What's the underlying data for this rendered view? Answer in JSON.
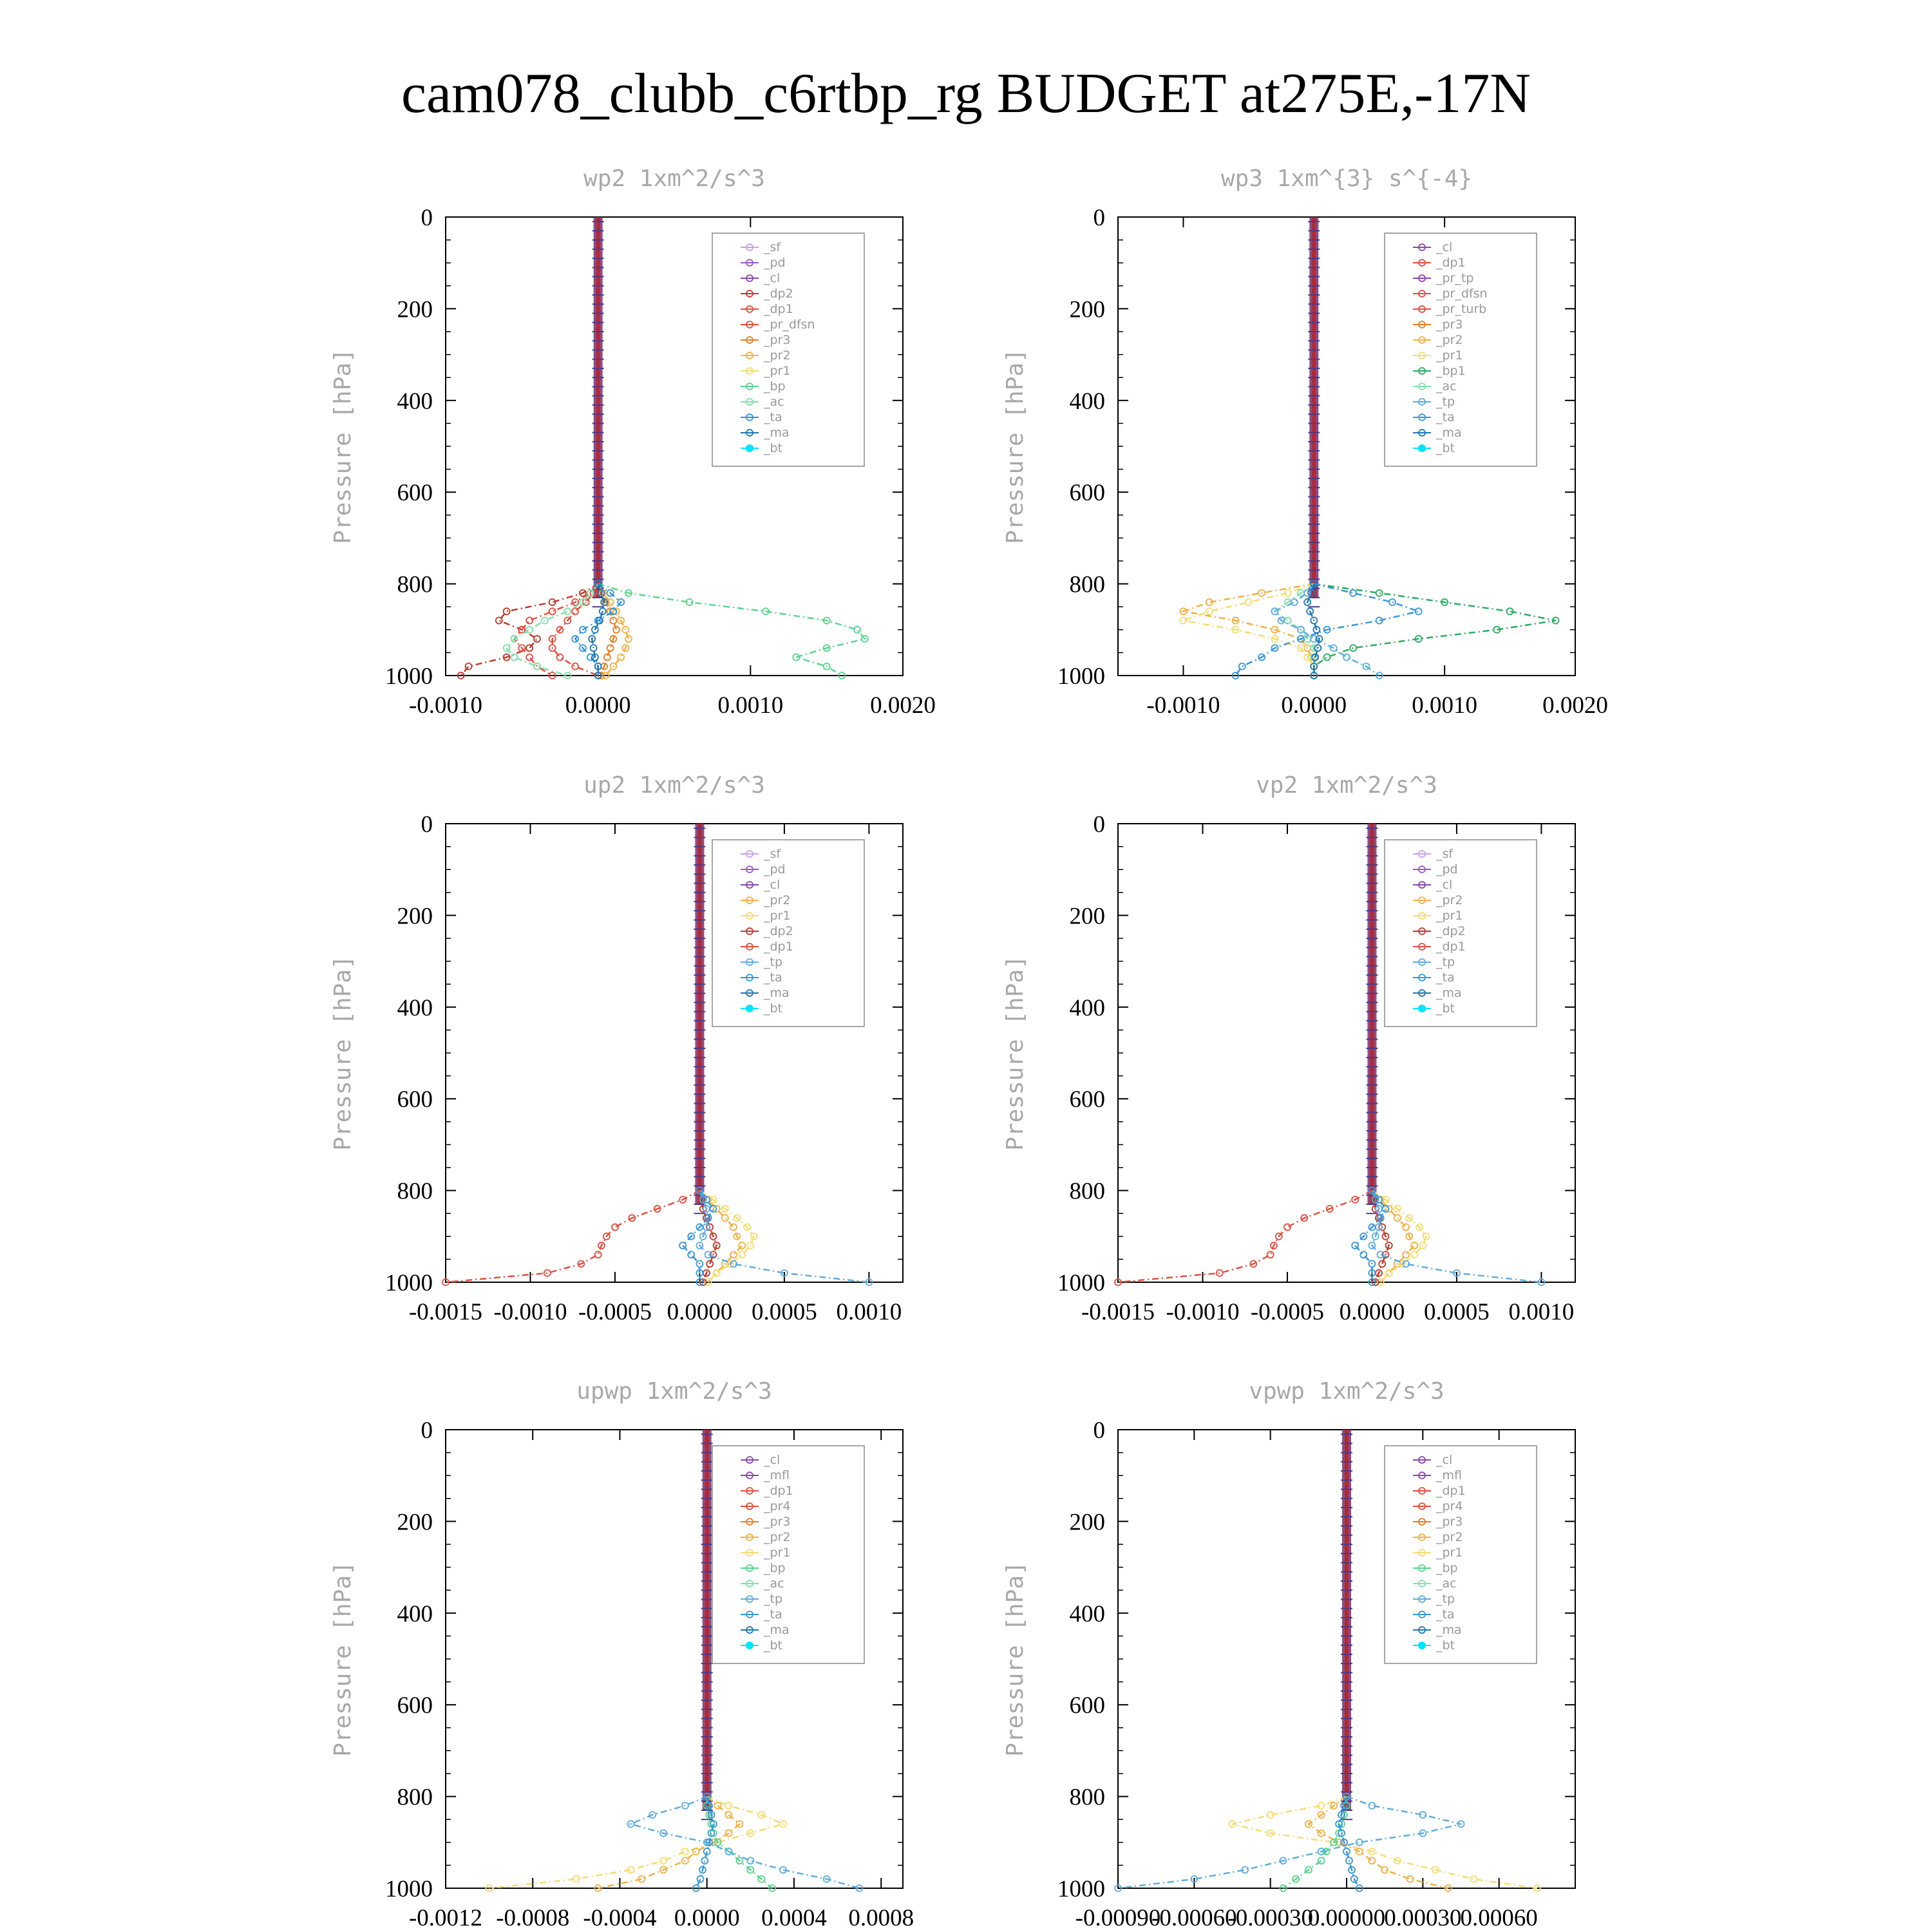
{
  "title": "cam078_clubb_c6rtbp_rg  BUDGET at275E,-17N",
  "colors": {
    "sf": "#c8a0e8",
    "pd": "#9b59d0",
    "cl": "#8e44ad",
    "mfl": "#8e44ad",
    "dp2": "#c0392b",
    "dp1": "#e74c3c",
    "pr_dfsn": "#e74c3c",
    "pr_tp": "#8e44ad",
    "pr_turb": "#e74c3c",
    "pr4": "#e74c3c",
    "pr3": "#e67e22",
    "pr2": "#f5b041",
    "pr1": "#f7dc6f",
    "bp": "#58d68d",
    "bp1": "#27ae60",
    "ac": "#82e0aa",
    "tp": "#5dade2",
    "ta": "#3498db",
    "ma": "#1f78b4",
    "bt": "#00e5ff"
  },
  "chart_data": [
    {
      "type": "line",
      "title": "wp2   1xm^2/s^3",
      "ylabel": "Pressure [hPa]",
      "xlim": [
        -0.001,
        0.002
      ],
      "ylim": [
        1000,
        0
      ],
      "xticks": [
        "-0.0010",
        "0.0000",
        "0.0010",
        "0.0020"
      ],
      "yticks": [
        "0",
        "200",
        "400",
        "600",
        "800",
        "1000"
      ],
      "legend": [
        "_sf",
        "_pd",
        "_cl",
        "_dp2",
        "_dp1",
        "_pr_dfsn",
        "_pr3",
        "_pr2",
        "_pr1",
        "_bp",
        "_ac",
        "_ta",
        "_ma",
        "_bt"
      ],
      "legend_position": "upper-right",
      "y": [
        800,
        820,
        840,
        860,
        880,
        900,
        920,
        940,
        960,
        980,
        1000
      ],
      "series": [
        {
          "name": "_dp2",
          "color_key": "dp2",
          "values": [
            0,
            -0.0001,
            -0.0003,
            -0.0006,
            -0.00065,
            -0.0005,
            -0.0004,
            -0.00045,
            -0.0006,
            -0.00085,
            -0.0009
          ]
        },
        {
          "name": "_dp1",
          "color_key": "dp1",
          "values": [
            0,
            -5e-05,
            -0.00015,
            -0.0003,
            -0.00045,
            -0.0005,
            -0.00055,
            -0.0005,
            -0.00045,
            -0.0004,
            -0.0003
          ]
        },
        {
          "name": "_pr_dfsn",
          "color_key": "pr_dfsn",
          "values": [
            0,
            -3e-05,
            -8e-05,
            -0.00015,
            -0.0002,
            -0.00025,
            -0.0003,
            -0.0003,
            -0.00025,
            -0.00015,
            0
          ]
        },
        {
          "name": "_pr3",
          "color_key": "pr3",
          "values": [
            0,
            2e-05,
            5e-05,
            8e-05,
            0.0001,
            0.00012,
            0.0001,
            8e-05,
            6e-05,
            4e-05,
            2e-05
          ]
        },
        {
          "name": "_pr2",
          "color_key": "pr2",
          "values": [
            0,
            3e-05,
            8e-05,
            0.00012,
            0.00015,
            0.00018,
            0.0002,
            0.00018,
            0.00015,
            0.0001,
            5e-05
          ]
        },
        {
          "name": "_bp",
          "color_key": "bp",
          "values": [
            0,
            0.0002,
            0.0006,
            0.0011,
            0.0015,
            0.0017,
            0.00175,
            0.0015,
            0.0013,
            0.0015,
            0.0016
          ]
        },
        {
          "name": "_ac",
          "color_key": "ac",
          "values": [
            0,
            -5e-05,
            -0.0001,
            -0.0002,
            -0.00035,
            -0.00045,
            -0.00055,
            -0.0006,
            -0.00055,
            -0.0004,
            -0.0002
          ]
        },
        {
          "name": "_ta",
          "color_key": "ta",
          "values": [
            0,
            8e-05,
            0.00015,
            0.0001,
            0,
            -0.0001,
            -0.00015,
            -0.0001,
            -5e-05,
            0,
            0
          ]
        },
        {
          "name": "_ma",
          "color_key": "ma",
          "values": [
            0,
            2e-05,
            4e-05,
            3e-05,
            1e-05,
            -2e-05,
            -4e-05,
            -3e-05,
            -2e-05,
            0,
            0
          ]
        }
      ]
    },
    {
      "type": "line",
      "title": "wp3   1xm^{3} s^{-4}",
      "ylabel": "Pressure [hPa]",
      "xlim": [
        -0.0015,
        0.002
      ],
      "ylim": [
        1000,
        0
      ],
      "xticks": [
        "-0.0010",
        "0.0000",
        "0.0010",
        "0.0020"
      ],
      "yticks": [
        "0",
        "200",
        "400",
        "600",
        "800",
        "1000"
      ],
      "legend": [
        "_cl",
        "_dp1",
        "_pr_tp",
        "_pr_dfsn",
        "_pr_turb",
        "_pr3",
        "_pr2",
        "_pr1",
        "_bp1",
        "_ac",
        "_tp",
        "_ta",
        "_ma",
        "_bt"
      ],
      "legend_position": "upper-right",
      "y": [
        800,
        820,
        840,
        860,
        880,
        900,
        920,
        940,
        960,
        980,
        1000
      ],
      "series": [
        {
          "name": "_pr2",
          "color_key": "pr2",
          "values": [
            0,
            -0.0004,
            -0.0008,
            -0.001,
            -0.0006,
            -0.0003,
            -0.0001,
            -5e-05,
            -2e-05,
            0,
            0
          ]
        },
        {
          "name": "_pr1",
          "color_key": "pr1",
          "values": [
            0,
            -0.0002,
            -0.0005,
            -0.0008,
            -0.001,
            -0.0006,
            -0.0003,
            -0.0001,
            -5e-05,
            0,
            0
          ]
        },
        {
          "name": "_bp1",
          "color_key": "bp1",
          "values": [
            0,
            0.0005,
            0.001,
            0.0015,
            0.00185,
            0.0014,
            0.0008,
            0.0003,
            0.0001,
            0,
            0
          ]
        },
        {
          "name": "_ac",
          "color_key": "ac",
          "values": [
            0,
            -0.0001,
            -0.0002,
            -0.0003,
            -0.0002,
            -0.0001,
            -5e-05,
            0,
            0,
            0,
            0
          ]
        },
        {
          "name": "_tp",
          "color_key": "tp",
          "values": [
            0,
            -5e-05,
            -0.00015,
            -0.0003,
            -0.00025,
            -0.0001,
            0,
            0.00015,
            0.00025,
            0.0004,
            0.0005
          ]
        },
        {
          "name": "_ta",
          "color_key": "ta",
          "values": [
            0,
            0.0003,
            0.0006,
            0.0008,
            0.0005,
            0.0001,
            -0.0001,
            -0.0003,
            -0.0004,
            -0.00055,
            -0.0006
          ]
        },
        {
          "name": "_ma",
          "color_key": "ma",
          "values": [
            0,
            -2e-05,
            -5e-05,
            -3e-05,
            0,
            2e-05,
            4e-05,
            3e-05,
            1e-05,
            0,
            0
          ]
        }
      ]
    },
    {
      "type": "line",
      "title": "up2   1xm^2/s^3",
      "ylabel": "Pressure [hPa]",
      "xlim": [
        -0.0015,
        0.0012
      ],
      "ylim": [
        1000,
        0
      ],
      "xticks": [
        "-0.0015",
        "-0.0010",
        "-0.0005",
        "0.0000",
        "0.0005",
        "0.0010"
      ],
      "yticks": [
        "0",
        "200",
        "400",
        "600",
        "800",
        "1000"
      ],
      "legend": [
        "_sf",
        "_pd",
        "_cl",
        "_pr2",
        "_pr1",
        "_dp2",
        "_dp1",
        "_tp",
        "_ta",
        "_ma",
        "_bt"
      ],
      "legend_position": "upper-right",
      "y": [
        800,
        820,
        840,
        860,
        880,
        900,
        920,
        940,
        960,
        980,
        1000
      ],
      "series": [
        {
          "name": "_pr2",
          "color_key": "pr2",
          "values": [
            0,
            5e-05,
            0.0001,
            0.00015,
            0.0002,
            0.00022,
            0.00025,
            0.0002,
            0.00015,
            0.0001,
            5e-05
          ]
        },
        {
          "name": "_pr1",
          "color_key": "pr1",
          "values": [
            0,
            8e-05,
            0.00015,
            0.00022,
            0.00028,
            0.00032,
            0.0003,
            0.00025,
            0.00018,
            0.0001,
            5e-05
          ]
        },
        {
          "name": "_dp2",
          "color_key": "dp2",
          "values": [
            0,
            1e-05,
            2e-05,
            4e-05,
            6e-05,
            8e-05,
            0.0001,
            8e-05,
            6e-05,
            4e-05,
            2e-05
          ]
        },
        {
          "name": "_dp1",
          "color_key": "dp1",
          "values": [
            0,
            -0.0001,
            -0.00025,
            -0.0004,
            -0.0005,
            -0.00055,
            -0.00058,
            -0.0006,
            -0.0007,
            -0.0009,
            -0.0015
          ]
        },
        {
          "name": "_tp",
          "color_key": "tp",
          "values": [
            0,
            2e-05,
            4e-05,
            5e-05,
            4e-05,
            2e-05,
            0,
            5e-05,
            0.0002,
            0.0005,
            0.001
          ]
        },
        {
          "name": "_ta",
          "color_key": "ta",
          "values": [
            0,
            4e-05,
            8e-05,
            5e-05,
            0,
            -5e-05,
            -0.0001,
            -5e-05,
            0,
            0,
            0
          ]
        }
      ]
    },
    {
      "type": "line",
      "title": "vp2   1xm^2/s^3",
      "ylabel": "Pressure [hPa]",
      "xlim": [
        -0.0015,
        0.0012
      ],
      "ylim": [
        1000,
        0
      ],
      "xticks": [
        "-0.0015",
        "-0.0010",
        "-0.0005",
        "0.0000",
        "0.0005",
        "0.0010"
      ],
      "yticks": [
        "0",
        "200",
        "400",
        "600",
        "800",
        "1000"
      ],
      "legend": [
        "_sf",
        "_pd",
        "_cl",
        "_pr2",
        "_pr1",
        "_dp2",
        "_dp1",
        "_tp",
        "_ta",
        "_ma",
        "_bt"
      ],
      "legend_position": "upper-right",
      "y": [
        800,
        820,
        840,
        860,
        880,
        900,
        920,
        940,
        960,
        980,
        1000
      ],
      "series": [
        {
          "name": "_pr2",
          "color_key": "pr2",
          "values": [
            0,
            5e-05,
            0.0001,
            0.00015,
            0.0002,
            0.00022,
            0.00025,
            0.0002,
            0.00015,
            0.0001,
            5e-05
          ]
        },
        {
          "name": "_pr1",
          "color_key": "pr1",
          "values": [
            0,
            8e-05,
            0.00015,
            0.00022,
            0.00028,
            0.00032,
            0.0003,
            0.00025,
            0.00018,
            0.0001,
            5e-05
          ]
        },
        {
          "name": "_dp2",
          "color_key": "dp2",
          "values": [
            0,
            1e-05,
            2e-05,
            4e-05,
            6e-05,
            8e-05,
            0.0001,
            8e-05,
            6e-05,
            4e-05,
            2e-05
          ]
        },
        {
          "name": "_dp1",
          "color_key": "dp1",
          "values": [
            0,
            -0.0001,
            -0.00025,
            -0.0004,
            -0.0005,
            -0.00055,
            -0.00058,
            -0.0006,
            -0.0007,
            -0.0009,
            -0.0015
          ]
        },
        {
          "name": "_tp",
          "color_key": "tp",
          "values": [
            0,
            2e-05,
            4e-05,
            5e-05,
            4e-05,
            2e-05,
            0,
            5e-05,
            0.0002,
            0.0005,
            0.001
          ]
        },
        {
          "name": "_ta",
          "color_key": "ta",
          "values": [
            0,
            4e-05,
            8e-05,
            5e-05,
            0,
            -5e-05,
            -0.0001,
            -5e-05,
            0,
            0,
            0
          ]
        }
      ]
    },
    {
      "type": "line",
      "title": "upwp   1xm^2/s^3",
      "ylabel": "Pressure [hPa]",
      "xlim": [
        -0.0012,
        0.0009
      ],
      "ylim": [
        1000,
        0
      ],
      "xticks": [
        "-0.0012",
        "-0.0008",
        "-0.0004",
        "0.0000",
        "0.0004",
        "0.0008"
      ],
      "yticks": [
        "0",
        "200",
        "400",
        "600",
        "800",
        "1000"
      ],
      "legend": [
        "_cl",
        "_mfl",
        "_dp1",
        "_pr4",
        "_pr3",
        "_pr2",
        "_pr1",
        "_bp",
        "_ac",
        "_tp",
        "_ta",
        "_ma",
        "_bt"
      ],
      "legend_position": "upper-right",
      "y": [
        800,
        820,
        840,
        860,
        880,
        900,
        920,
        940,
        960,
        980,
        1000
      ],
      "series": [
        {
          "name": "_pr1",
          "color_key": "pr1",
          "values": [
            0,
            0.0001,
            0.00025,
            0.00035,
            0.0002,
            5e-05,
            -0.0001,
            -0.0002,
            -0.00035,
            -0.0006,
            -0.001
          ]
        },
        {
          "name": "_pr2",
          "color_key": "pr2",
          "values": [
            0,
            5e-05,
            0.0001,
            0.00015,
            0.0001,
            3e-05,
            -5e-05,
            -0.0001,
            -0.0002,
            -0.0003,
            -0.0005
          ]
        },
        {
          "name": "_bp",
          "color_key": "bp",
          "values": [
            0,
            0,
            1e-05,
            2e-05,
            3e-05,
            5e-05,
            0.0001,
            0.00015,
            0.0002,
            0.00025,
            0.0003
          ]
        },
        {
          "name": "_tp",
          "color_key": "tp",
          "values": [
            0,
            -0.0001,
            -0.00025,
            -0.00035,
            -0.0002,
            0,
            0.0001,
            0.0002,
            0.00035,
            0.00055,
            0.0007
          ]
        },
        {
          "name": "_ta",
          "color_key": "ta",
          "values": [
            0,
            1e-05,
            2e-05,
            3e-05,
            2e-05,
            1e-05,
            0,
            -1e-05,
            -2e-05,
            -3e-05,
            -5e-05
          ]
        }
      ]
    },
    {
      "type": "line",
      "title": "vpwp   1xm^2/s^3",
      "ylabel": "Pressure [hPa]",
      "xlim": [
        -0.0009,
        0.0009
      ],
      "ylim": [
        1000,
        0
      ],
      "xticks": [
        "-0.00090",
        "-0.00060",
        "-0.00030",
        "0.00000",
        "0.00030",
        "0.00060"
      ],
      "yticks": [
        "0",
        "200",
        "400",
        "600",
        "800",
        "1000"
      ],
      "legend": [
        "_cl",
        "_mfl",
        "_dp1",
        "_pr4",
        "_pr3",
        "_pr2",
        "_pr1",
        "_bp",
        "_ac",
        "_tp",
        "_ta",
        "_ma",
        "_bt"
      ],
      "legend_position": "upper-right",
      "y": [
        800,
        820,
        840,
        860,
        880,
        900,
        920,
        940,
        960,
        980,
        1000
      ],
      "series": [
        {
          "name": "_pr1",
          "color_key": "pr1",
          "values": [
            0,
            -0.0001,
            -0.0003,
            -0.00045,
            -0.0003,
            -5e-05,
            0.0001,
            0.0002,
            0.00035,
            0.0005,
            0.00075
          ]
        },
        {
          "name": "_pr2",
          "color_key": "pr2",
          "values": [
            0,
            -5e-05,
            -0.0001,
            -0.00015,
            -0.0001,
            -3e-05,
            5e-05,
            0.0001,
            0.00015,
            0.00025,
            0.0004
          ]
        },
        {
          "name": "_bp",
          "color_key": "bp",
          "values": [
            0,
            0,
            -1e-05,
            -2e-05,
            -3e-05,
            -5e-05,
            -8e-05,
            -0.0001,
            -0.00015,
            -0.0002,
            -0.00025
          ]
        },
        {
          "name": "_tp",
          "color_key": "tp",
          "values": [
            0,
            0.0001,
            0.0003,
            0.00045,
            0.0003,
            5e-05,
            -0.0001,
            -0.00025,
            -0.0004,
            -0.0006,
            -0.0009
          ]
        },
        {
          "name": "_ta",
          "color_key": "ta",
          "values": [
            0,
            -1e-05,
            -2e-05,
            -3e-05,
            -2e-05,
            -1e-05,
            0,
            1e-05,
            2e-05,
            3e-05,
            5e-05
          ]
        }
      ]
    }
  ]
}
